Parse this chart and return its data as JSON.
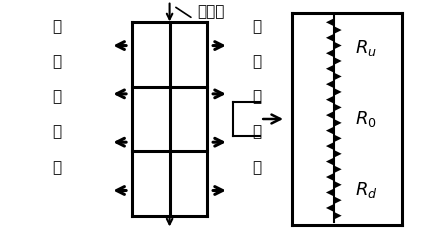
{
  "bg_color": "#ffffff",
  "left_text": [
    "横",
    "向",
    "无",
    "限",
    "大"
  ],
  "right_text": [
    "横",
    "向",
    "无",
    "限",
    "大"
  ],
  "top_label": "热传递",
  "resistor_labels": [
    "R_u",
    "R_0",
    "R_d"
  ],
  "fig_width": 4.22,
  "fig_height": 2.38,
  "dpi": 100
}
